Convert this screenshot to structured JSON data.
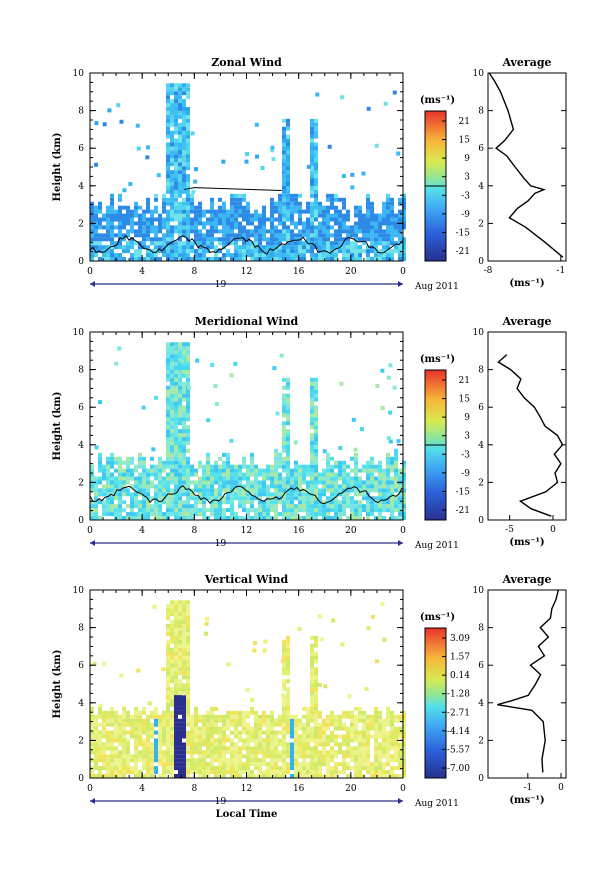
{
  "chart_data": [
    {
      "type": "heatmap",
      "title": "Zonal Wind",
      "ylabel": "Height (km)",
      "xticks": [
        "0",
        "4",
        "8",
        "12",
        "16",
        "20",
        "0"
      ],
      "yticks": [
        "0",
        "2",
        "4",
        "6",
        "8",
        "10"
      ],
      "xlim": [
        0,
        24
      ],
      "ylim": [
        0,
        10
      ],
      "date_label": "19",
      "month_label": "Aug 2011",
      "colorbar": {
        "unit": "(ms⁻¹)",
        "ticks": [
          "21",
          "15",
          "9",
          "3",
          "-3",
          "-9",
          "-15",
          "-21"
        ],
        "range": [
          -24,
          24
        ]
      },
      "profile": {
        "title": "Average",
        "xlabel": "(ms⁻¹)",
        "xticks": [
          "-8",
          "-1"
        ],
        "xlim": [
          -8,
          -0.5
        ],
        "heights": [
          0.2,
          1,
          1.8,
          2.3,
          2.8,
          3.2,
          3.6,
          3.8,
          4.0,
          4.4,
          5,
          5.6,
          6.0,
          6.4,
          7,
          8,
          9,
          9.6,
          10
        ],
        "values": [
          -0.8,
          -2.5,
          -4.5,
          -6,
          -5.2,
          -4.2,
          -3.5,
          -2.6,
          -3.8,
          -4.6,
          -5.5,
          -6.2,
          -7.3,
          -6.5,
          -5.5,
          -6,
          -6.8,
          -7.5,
          -7.8
        ]
      }
    },
    {
      "type": "heatmap",
      "title": "Meridional Wind",
      "ylabel": "Height (km)",
      "xticks": [
        "0",
        "4",
        "8",
        "12",
        "16",
        "20",
        "0"
      ],
      "yticks": [
        "0",
        "2",
        "4",
        "6",
        "8",
        "10"
      ],
      "xlim": [
        0,
        24
      ],
      "ylim": [
        0,
        10
      ],
      "date_label": "19",
      "month_label": "Aug 2011",
      "colorbar": {
        "unit": "(ms⁻¹)",
        "ticks": [
          "21",
          "15",
          "9",
          "3",
          "-3",
          "-9",
          "-15",
          "-21"
        ],
        "range": [
          -24,
          24
        ]
      },
      "profile": {
        "title": "Average",
        "xlabel": "(ms⁻¹)",
        "xticks": [
          "-5",
          "0"
        ],
        "xlim": [
          -7.5,
          1.5
        ],
        "heights": [
          0.2,
          0.6,
          1.0,
          1.5,
          2.0,
          2.5,
          3.0,
          3.5,
          4.0,
          4.5,
          5.0,
          5.5,
          6.0,
          6.5,
          7,
          7.5,
          8,
          8.4,
          8.8
        ],
        "values": [
          -0.2,
          -2.5,
          -3.8,
          -0.8,
          0.5,
          0.3,
          0.8,
          0.2,
          1.2,
          0.6,
          -0.8,
          -1.6,
          -2.2,
          -3.2,
          -4.2,
          -3.8,
          -5,
          -6.2,
          -5.2
        ]
      }
    },
    {
      "type": "heatmap",
      "title": "Vertical Wind",
      "ylabel": "Height (km)",
      "xlabel": "Local Time",
      "xticks": [
        "0",
        "4",
        "8",
        "12",
        "16",
        "20",
        "0"
      ],
      "yticks": [
        "0",
        "2",
        "4",
        "6",
        "8",
        "10"
      ],
      "xlim": [
        0,
        24
      ],
      "ylim": [
        0,
        10
      ],
      "date_label": "19",
      "month_label": "Aug 2011",
      "colorbar": {
        "unit": "(ms⁻¹)",
        "ticks": [
          "3.09",
          "1.57",
          "0.14",
          "-1.28",
          "-2.71",
          "-4.14",
          "-5.57",
          "-7.00"
        ],
        "range": [
          -8,
          4
        ]
      },
      "profile": {
        "title": "Average",
        "xlabel": "(ms⁻¹)",
        "xticks": [
          "-1",
          "0"
        ],
        "xlim": [
          -2.2,
          0.15
        ],
        "heights": [
          0.3,
          1,
          2,
          3,
          3.6,
          3.9,
          4.1,
          4.4,
          5,
          5.5,
          6,
          6.5,
          7,
          7.5,
          8,
          8.5,
          9,
          9.5,
          10
        ],
        "values": [
          -0.55,
          -0.55,
          -0.5,
          -0.55,
          -0.9,
          -1.9,
          -1.5,
          -1.0,
          -0.8,
          -0.6,
          -0.9,
          -0.5,
          -0.7,
          -0.4,
          -0.6,
          -0.3,
          -0.3,
          -0.15,
          -0.05
        ]
      }
    }
  ]
}
